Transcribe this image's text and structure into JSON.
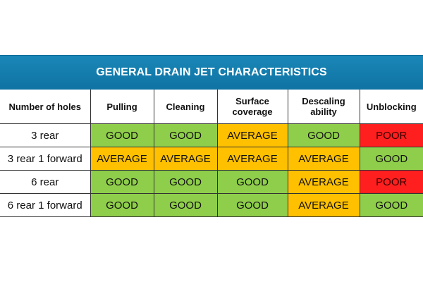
{
  "title": "GENERAL DRAIN JET CHARACTERISTICS",
  "columns": [
    "Number of holes",
    "Pulling",
    "Cleaning",
    "Surface coverage",
    "Descaling ability",
    "Unblocking"
  ],
  "rows": [
    {
      "label": "3 rear",
      "values": [
        "GOOD",
        "GOOD",
        "AVERAGE",
        "GOOD",
        "POOR"
      ]
    },
    {
      "label": "3 rear 1 forward",
      "values": [
        "AVERAGE",
        "AVERAGE",
        "AVERAGE",
        "AVERAGE",
        "GOOD"
      ]
    },
    {
      "label": "6 rear",
      "values": [
        "GOOD",
        "GOOD",
        "GOOD",
        "AVERAGE",
        "POOR"
      ]
    },
    {
      "label": "6 rear 1 forward",
      "values": [
        "GOOD",
        "GOOD",
        "GOOD",
        "AVERAGE",
        "GOOD"
      ]
    }
  ],
  "colors": {
    "title_bar": "#1580b3",
    "good": "#8fce4a",
    "average": "#ffc000",
    "poor": "#ff1f1f"
  }
}
